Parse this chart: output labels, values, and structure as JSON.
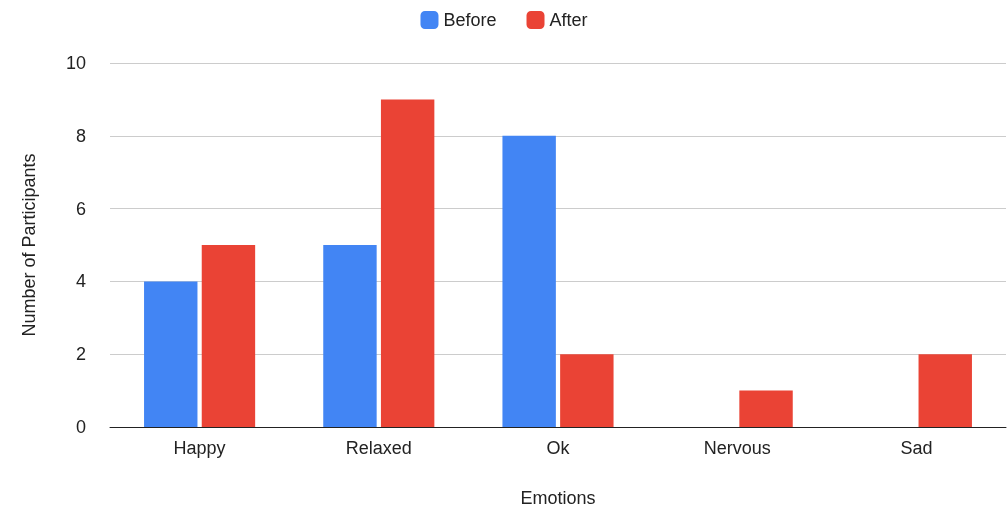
{
  "chart_data": {
    "type": "bar",
    "xlabel": "Emotions",
    "ylabel": "Number of Participants",
    "categories": [
      "Happy",
      "Relaxed",
      "Ok",
      "Nervous",
      "Sad"
    ],
    "series": [
      {
        "name": "Before",
        "color": "#4285f4",
        "values": [
          4,
          5,
          8,
          0,
          0
        ]
      },
      {
        "name": "After",
        "color": "#ea4335",
        "values": [
          5,
          9,
          2,
          1,
          2
        ]
      }
    ],
    "ylim": [
      0,
      10
    ],
    "yticks": [
      0,
      2,
      4,
      6,
      8,
      10
    ],
    "grid": "y",
    "legend": "top"
  }
}
